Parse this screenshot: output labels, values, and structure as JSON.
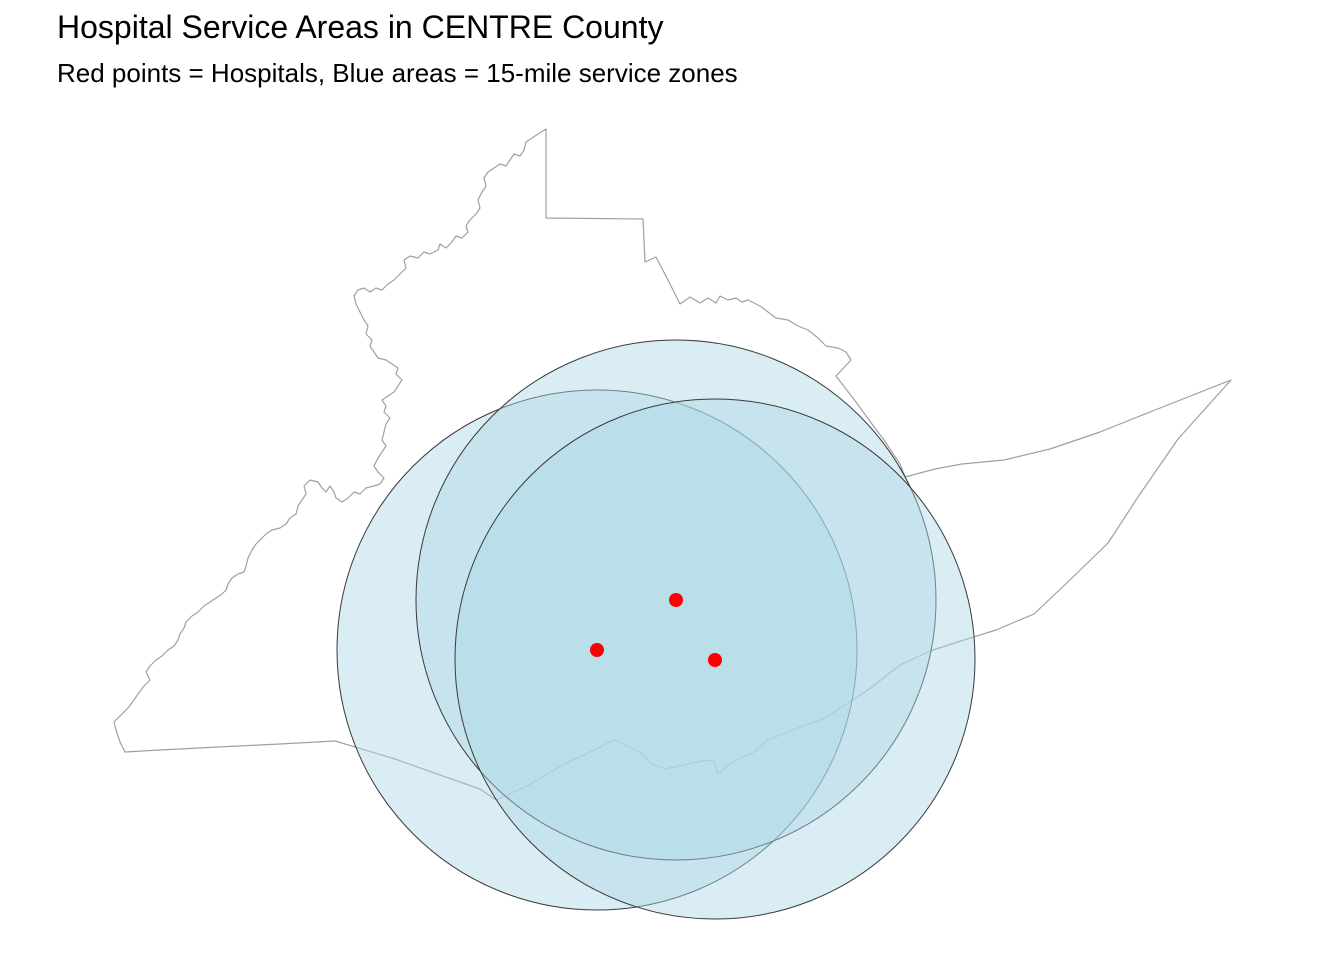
{
  "title": "Hospital Service Areas in CENTRE County",
  "subtitle": "Red points = Hospitals, Blue areas = 15-mile service zones",
  "colors": {
    "hospital_point": "#ff0000",
    "service_zone_fill": "#add8e6",
    "service_zone_stroke": "#3a3a3a",
    "county_boundary": "#a0a0a0",
    "background": "#ffffff"
  },
  "map": {
    "county": "CENTRE",
    "service_radius_miles": 15,
    "hospital_count": 3
  }
}
